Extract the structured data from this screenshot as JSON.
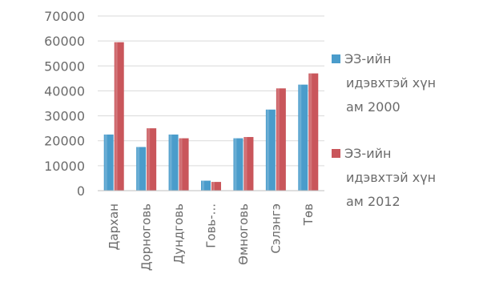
{
  "chart_data": {
    "type": "bar",
    "categories": [
      "Дархан",
      "Дорноговь",
      "Дундговь",
      "Говь-...",
      "Өмноговь",
      "Сэлэнгэ",
      "Төв"
    ],
    "series": [
      {
        "name": "ЭЗ-ийн идэвхтэй хүн ам 2000",
        "legend_lines": [
          "ЭЗ-ийн",
          "идэвхтэй хүн",
          "ам  2000"
        ],
        "color": "#4a9ccb",
        "values": [
          22500,
          17500,
          22500,
          4000,
          21000,
          32500,
          42500
        ]
      },
      {
        "name": "ЭЗ-ийн идэвхтэй хүн ам 2012",
        "legend_lines": [
          "ЭЗ-ийн",
          "идэвхтэй хүн",
          "ам  2012"
        ],
        "color": "#c9565b",
        "values": [
          59500,
          25000,
          21000,
          3500,
          21500,
          41000,
          47000
        ]
      }
    ],
    "yticks": [
      "0",
      "10000",
      "20000",
      "30000",
      "40000",
      "50000",
      "60000",
      "70000"
    ],
    "ylim": [
      0,
      70000
    ],
    "grid": true,
    "legend": "right",
    "title": "",
    "xlabel": "",
    "ylabel": ""
  }
}
